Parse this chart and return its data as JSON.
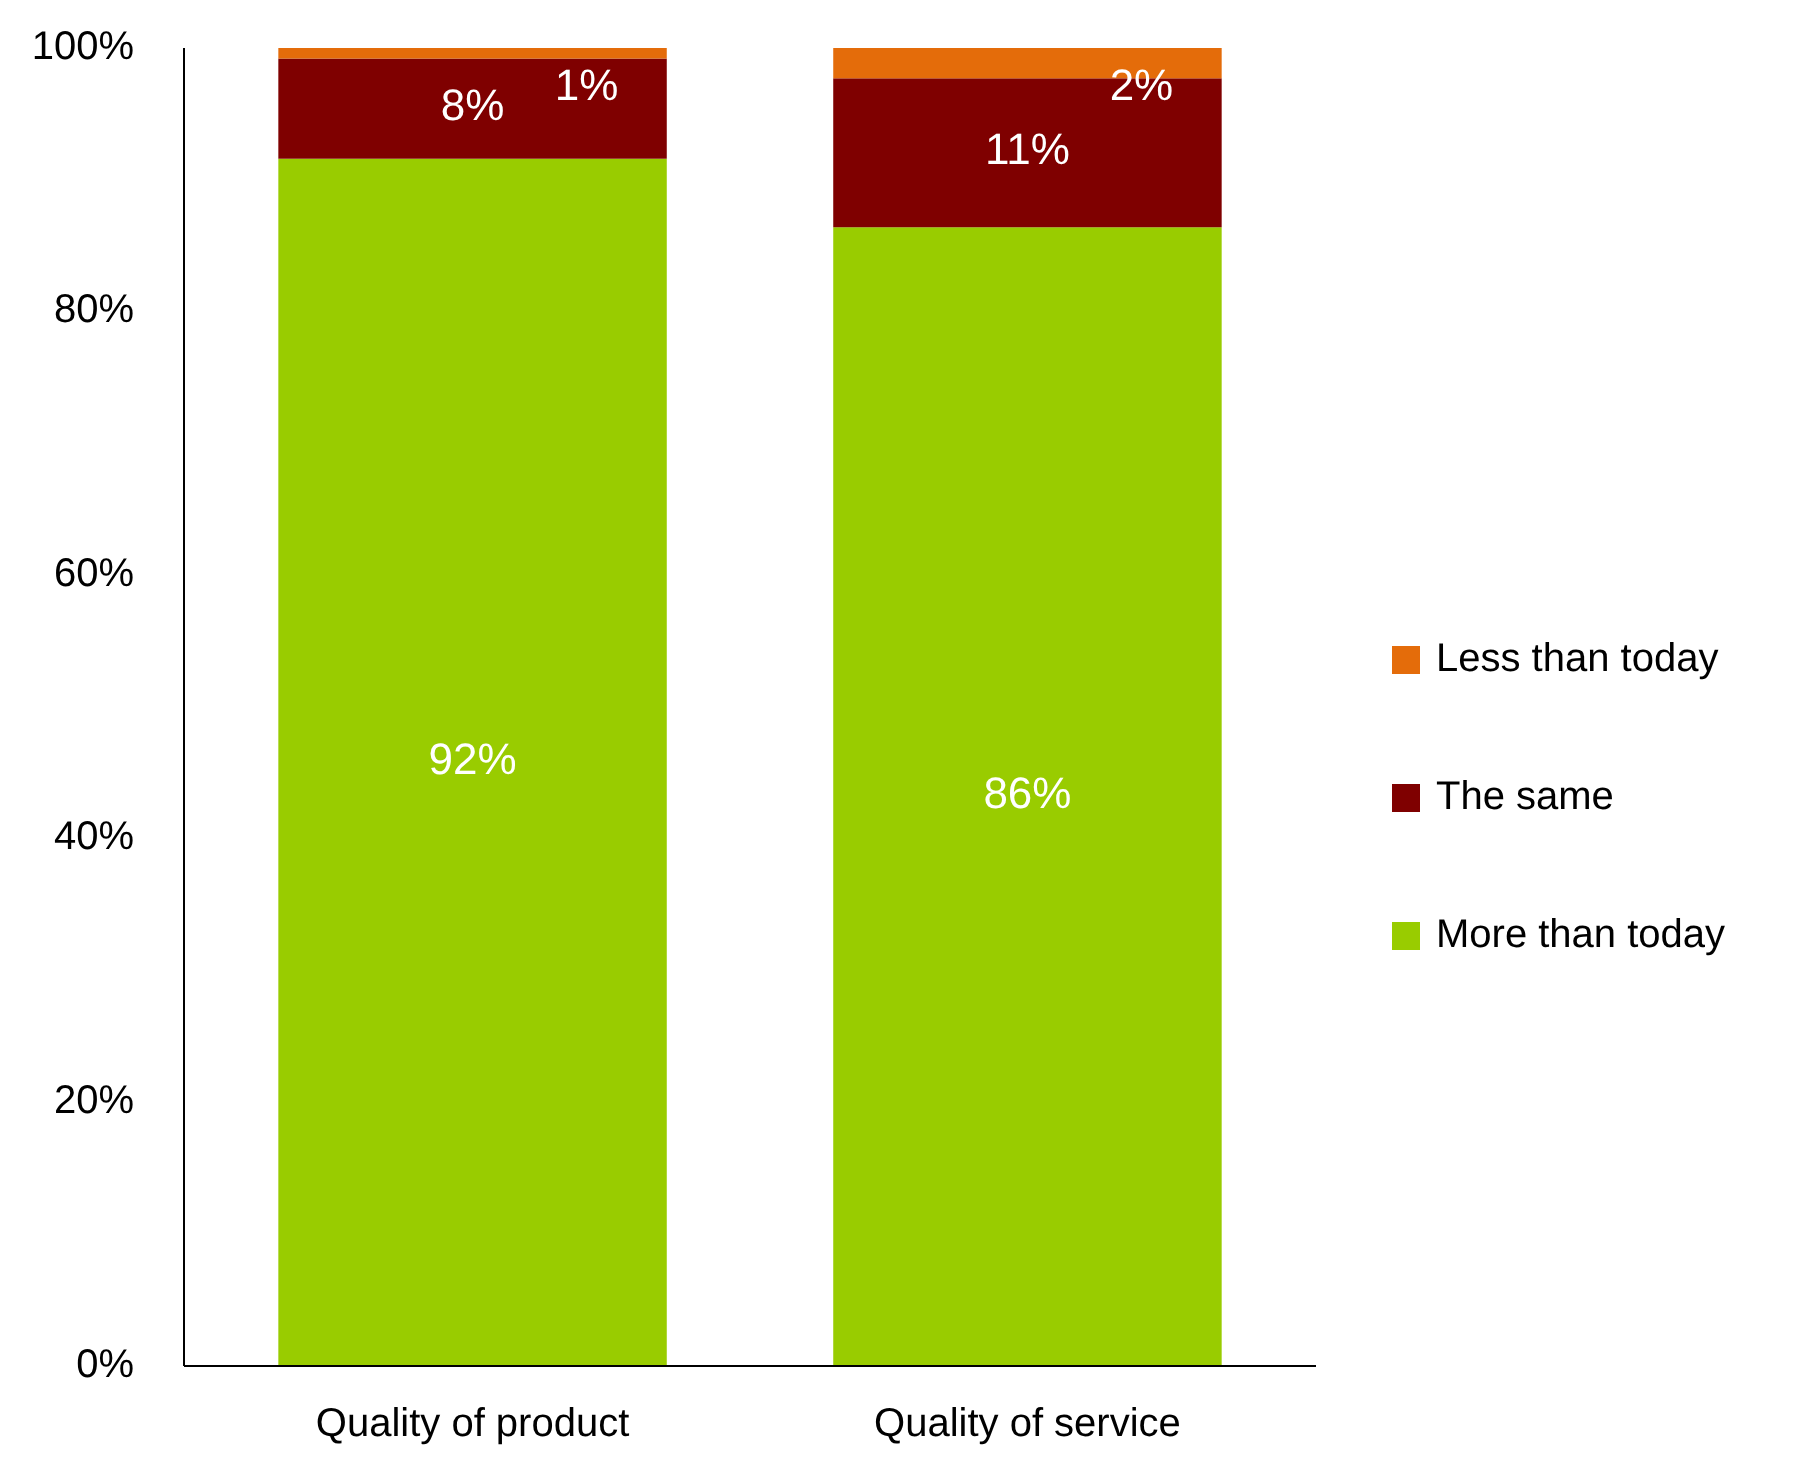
{
  "chart_data": {
    "type": "bar",
    "stacked": true,
    "categories": [
      "Quality of product",
      "Quality of service"
    ],
    "series": [
      {
        "name": "More than today",
        "color": "#99cc00",
        "values": [
          91.6,
          86.4
        ],
        "value_labels": [
          "92%",
          "86%"
        ]
      },
      {
        "name": "The same",
        "color": "#7f0000",
        "values": [
          7.6,
          11.3
        ],
        "value_labels": [
          "8%",
          "11%"
        ]
      },
      {
        "name": "Less than today",
        "color": "#e46c0a",
        "values": [
          0.8,
          2.3
        ],
        "value_labels": [
          "1%",
          "2%"
        ]
      }
    ],
    "ylim": [
      0,
      100
    ],
    "yticks": [
      {
        "value": 0,
        "label": "0%"
      },
      {
        "value": 20,
        "label": "20%"
      },
      {
        "value": 40,
        "label": "40%"
      },
      {
        "value": 60,
        "label": "60%"
      },
      {
        "value": 80,
        "label": "80%"
      },
      {
        "value": 100,
        "label": "100%"
      }
    ],
    "grid": false,
    "legend": "right"
  }
}
